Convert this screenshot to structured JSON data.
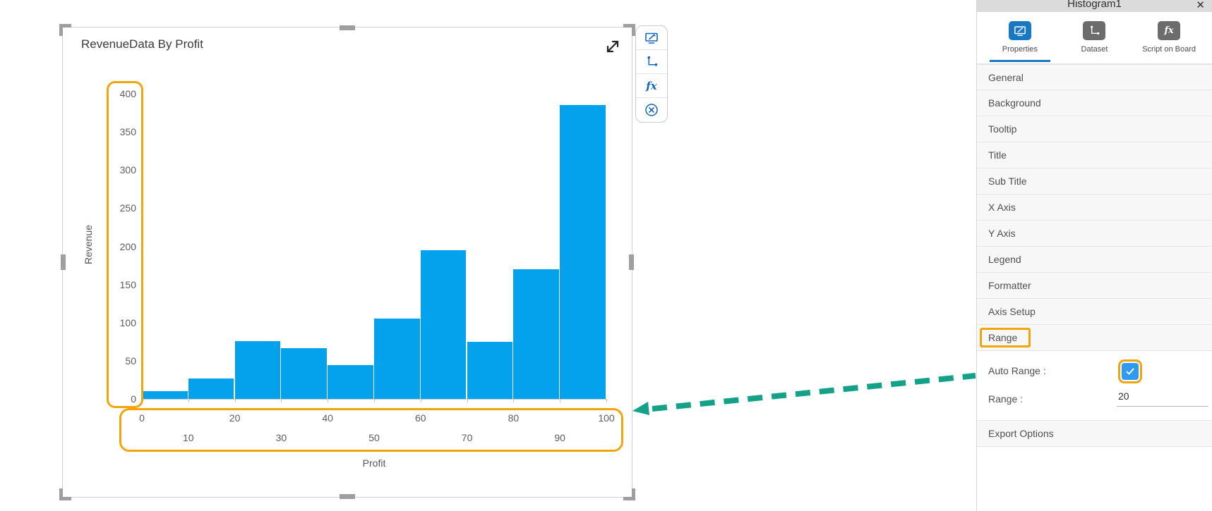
{
  "chart_widget": {
    "title": "RevenueData By Profit",
    "toolbar_icon_names": [
      "edit-chart-icon",
      "axis-setup-icon",
      "fx-script-icon",
      "remove-icon"
    ]
  },
  "chart_data": {
    "type": "bar",
    "subtype": "histogram",
    "title": "RevenueData By Profit",
    "xlabel": "Profit",
    "ylabel": "Revenue",
    "bins": [
      "0-10",
      "10-20",
      "20-30",
      "30-40",
      "40-50",
      "50-60",
      "60-70",
      "70-80",
      "80-90",
      "90-100"
    ],
    "values": [
      10,
      27,
      76,
      67,
      44,
      105,
      195,
      75,
      170,
      385
    ],
    "x_ticks": [
      0,
      10,
      20,
      30,
      40,
      50,
      60,
      70,
      80,
      90,
      100
    ],
    "y_ticks": [
      0,
      50,
      100,
      150,
      200,
      250,
      300,
      350,
      400
    ],
    "xlim": [
      0,
      100
    ],
    "ylim": [
      0,
      400
    ],
    "bar_color": "#04A1ED",
    "grid": false,
    "legend": false
  },
  "annotations": {
    "highlight_color": "#F2A40B",
    "arrow_color": "#13A287",
    "highlighted_items": [
      "y-axis-labels",
      "x-axis-labels",
      "range-section-header",
      "auto-range-checkbox"
    ]
  },
  "panel": {
    "title": "Histogram1",
    "close_label": "✕",
    "tabs": [
      {
        "label": "Properties",
        "active": true
      },
      {
        "label": "Dataset",
        "active": false
      },
      {
        "label": "Script on Board",
        "active": false
      }
    ],
    "sections": [
      "General",
      "Background",
      "Tooltip",
      "Title",
      "Sub Title",
      "X Axis",
      "Y Axis",
      "Legend",
      "Formatter",
      "Axis Setup"
    ],
    "range": {
      "header": "Range",
      "auto_range_label": "Auto Range :",
      "auto_range_checked": true,
      "range_label": "Range :",
      "range_value": "20"
    },
    "export_header": "Export Options"
  }
}
